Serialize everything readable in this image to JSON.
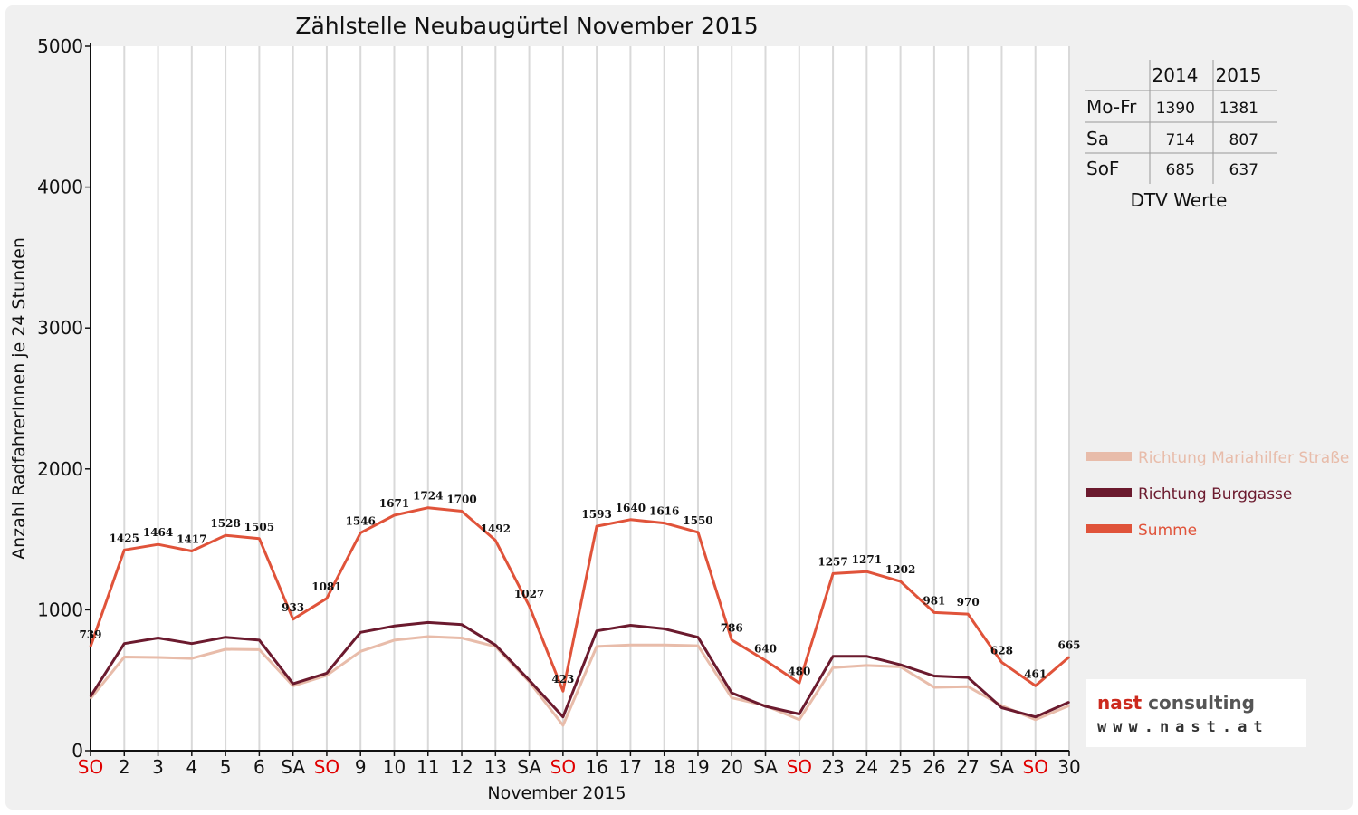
{
  "chart_data": {
    "type": "line",
    "title": "Zählstelle Neubaugürtel November 2015",
    "xlabel": "November 2015",
    "ylabel": "Anzahl RadfahrerInnen je 24 Stunden",
    "ylim": [
      0,
      5000
    ],
    "yticks": [
      "0",
      "1000",
      "2000",
      "3000",
      "4000",
      "5000"
    ],
    "grid": "vertical",
    "legend_position": "right",
    "categories": [
      "SO",
      "2",
      "3",
      "4",
      "5",
      "6",
      "SA",
      "SO",
      "9",
      "10",
      "11",
      "12",
      "13",
      "SA",
      "SO",
      "16",
      "17",
      "18",
      "19",
      "20",
      "SA",
      "SO",
      "23",
      "24",
      "25",
      "26",
      "27",
      "SA",
      "SO",
      "30"
    ],
    "red_categories": [
      "SO"
    ],
    "series": [
      {
        "name": "Richtung Mariahilfer Straße",
        "color": "#e8bcaa",
        "values": [
          370,
          665,
          662,
          655,
          720,
          717,
          460,
          535,
          705,
          785,
          810,
          800,
          740,
          490,
          180,
          740,
          750,
          750,
          745,
          375,
          320,
          220,
          590,
          605,
          595,
          450,
          455,
          320,
          220,
          320
        ]
      },
      {
        "name": "Richtung Burggasse",
        "color": "#6b1a2e",
        "values": [
          385,
          760,
          800,
          760,
          805,
          785,
          475,
          550,
          840,
          885,
          910,
          895,
          750,
          500,
          240,
          850,
          890,
          865,
          805,
          410,
          315,
          260,
          670,
          670,
          610,
          530,
          520,
          305,
          240,
          345
        ]
      },
      {
        "name": "Summe",
        "color": "#e0533a",
        "values": [
          739,
          1425,
          1464,
          1417,
          1528,
          1505,
          933,
          1081,
          1546,
          1671,
          1724,
          1700,
          1492,
          1027,
          423,
          1593,
          1640,
          1616,
          1550,
          786,
          640,
          480,
          1257,
          1271,
          1202,
          981,
          970,
          628,
          461,
          665
        ],
        "data_labels": [
          "739",
          "1425",
          "1464",
          "1417",
          "1528",
          "1505",
          "933",
          "1081",
          "1546",
          "1671",
          "1724",
          "1700",
          "1492",
          "1027",
          "423",
          "1593",
          "1640",
          "1616",
          "1550",
          "786",
          "640",
          "480",
          "1257",
          "1271",
          "1202",
          "981",
          "970",
          "628",
          "461",
          "665"
        ]
      }
    ]
  },
  "dtv_table": {
    "headers": [
      "",
      "2014",
      "2015"
    ],
    "rows": [
      {
        "label": "Mo-Fr",
        "v2014": "1390",
        "v2015": "1381"
      },
      {
        "label": "Sa",
        "v2014": "714",
        "v2015": "807"
      },
      {
        "label": "SoF",
        "v2014": "685",
        "v2015": "637"
      }
    ],
    "caption": "DTV Werte"
  },
  "logo": {
    "main": "nast consulting",
    "main_color_1": "#cc2a1e",
    "main_color_2": "#555555",
    "url": "www.nast.at"
  }
}
